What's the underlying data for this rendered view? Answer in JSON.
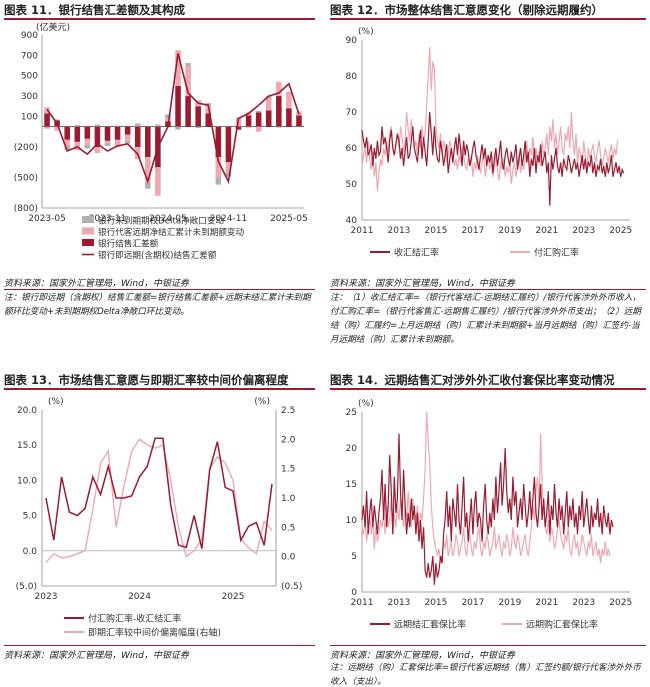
{
  "colors": {
    "dark": "#9b1b30",
    "light": "#f0a8b0",
    "grey": "#b0b0b0",
    "axis": "#888888"
  },
  "panels": [
    {
      "title": "图表 11．银行结售汇差额及其构成",
      "source": "资料来源：国家外汇管理局，Wind，中银证券",
      "note": "注：银行即远期（含期权）结售汇差额=银行结售汇差额+远期未结汇累计未到期额环比变动+未到期期权Delta净敞口环比变动。"
    },
    {
      "title": "图表 12．市场整体结售汇意愿变化（剔除远期履约）",
      "source": "资料来源：国家外汇管理局，Wind，中银证券",
      "note": "注：（1）收汇结汇率=（银行代客结汇-远期结汇履约）/银行代客涉外外币收入，付汇购汇率=（银行代客售汇-远期售汇履约）/银行代客涉外外币支出；（2）远期结（购）汇履约=上月远期结（购）汇累计未到期额+当月远期结（购）汇签约-当月远期结（购）汇累计未到期额。"
    },
    {
      "title": "图表 13．市场结售汇意愿与即期汇率较中间价偏离程度",
      "source": "资料来源：国家外汇管理局，Wind，中银证券"
    },
    {
      "title": "图表 14．远期结售汇对涉外外汇收付套保比率变动情况",
      "source": "资料来源：国家外汇管理局，Wind，中银证券",
      "note": "注：远期结（购）汇套保比率=银行代客远期结（售）汇签约额/银行代客涉外外币收入（支出）。"
    }
  ],
  "chart_data": [
    {
      "type": "bar",
      "unit_label": "(亿美元)",
      "ylim": [
        -800,
        900
      ],
      "y_ticks": [
        900,
        700,
        500,
        300,
        100,
        -200,
        -500,
        -800
      ],
      "y_tick_labels": [
        "900",
        "700",
        "500",
        "300",
        "100",
        "(200)",
        "(500)",
        "(800)"
      ],
      "x_tick_labels": [
        "2023-05",
        "2023-11",
        "2024-05",
        "2024-11",
        "2025-05"
      ],
      "x_tick_index": [
        0,
        6,
        12,
        18,
        24
      ],
      "stacked": true,
      "series": [
        {
          "name": "银行未到期期权Delta净敞口变动",
          "kind": "bar",
          "color_key": "grey",
          "values": [
            -20,
            10,
            -40,
            15,
            -35,
            20,
            -30,
            10,
            -25,
            30,
            -60,
            20,
            40,
            -30,
            25,
            -15,
            20,
            -70,
            -40,
            10,
            -10,
            15,
            20,
            -10,
            10,
            -5
          ]
        },
        {
          "name": "银行代客远期净结汇累计未到期额变动",
          "kind": "bar",
          "color_key": "light",
          "values": [
            60,
            -40,
            -60,
            -80,
            -60,
            -60,
            -20,
            -70,
            -60,
            -120,
            -250,
            -280,
            30,
            350,
            300,
            60,
            80,
            -200,
            -100,
            80,
            30,
            -50,
            120,
            140,
            150,
            40
          ]
        },
        {
          "name": "银行结售汇差额",
          "kind": "bar",
          "color_key": "dark",
          "values": [
            130,
            60,
            -130,
            -150,
            -120,
            -200,
            -140,
            -130,
            -80,
            -200,
            -300,
            -400,
            50,
            400,
            300,
            200,
            130,
            -300,
            -350,
            -30,
            110,
            140,
            160,
            300,
            180,
            110
          ]
        },
        {
          "name": "银行即远期(含期权)结售汇差额",
          "kind": "line",
          "color_key": "dark",
          "values": [
            170,
            30,
            -240,
            -200,
            -270,
            -170,
            -240,
            -190,
            -170,
            -270,
            -540,
            -200,
            0,
            720,
            330,
            230,
            210,
            -340,
            -540,
            80,
            130,
            210,
            300,
            330,
            420,
            120
          ]
        }
      ]
    },
    {
      "type": "line",
      "unit_label": "(%)",
      "ylim": [
        40,
        90
      ],
      "y_ticks": [
        40,
        50,
        60,
        70,
        80,
        90
      ],
      "x_tick_labels": [
        "2011",
        "2013",
        "2015",
        "2017",
        "2019",
        "2021",
        "2023",
        "2025"
      ],
      "x_range": [
        2011,
        2025.5
      ],
      "series": [
        {
          "name": "收汇结汇率",
          "color_key": "dark",
          "start": 2011.0,
          "step": 0.0833,
          "values": [
            65,
            62,
            60,
            63,
            58,
            59,
            61,
            55,
            60,
            57,
            62,
            58,
            59,
            66,
            61,
            63,
            60,
            56,
            62,
            65,
            60,
            58,
            61,
            64,
            62,
            57,
            60,
            55,
            59,
            63,
            57,
            58,
            62,
            66,
            60,
            58,
            56,
            61,
            65,
            57,
            63,
            59,
            55,
            62,
            70,
            64,
            58,
            66,
            60,
            57,
            56,
            62,
            59,
            55,
            58,
            61,
            53,
            57,
            60,
            56,
            60,
            63,
            58,
            64,
            60,
            55,
            62,
            58,
            61,
            59,
            55,
            57,
            60,
            62,
            58,
            56,
            54,
            58,
            61,
            57,
            60,
            55,
            58,
            56,
            59,
            53,
            57,
            60,
            55,
            58,
            62,
            56,
            54,
            58,
            60,
            57,
            55,
            59,
            56,
            58,
            61,
            54,
            57,
            60,
            55,
            58,
            62,
            56,
            59,
            52,
            57,
            55,
            60,
            53,
            58,
            56,
            61,
            55,
            57,
            59,
            53,
            56,
            44,
            58,
            54,
            57,
            60,
            55,
            53,
            56,
            52,
            57,
            55,
            54,
            58,
            56,
            53,
            55,
            57,
            54,
            56,
            52,
            55,
            58,
            54,
            57,
            53,
            56,
            55,
            58,
            53,
            56,
            52,
            55,
            54,
            57,
            53,
            55,
            52,
            56,
            53,
            55,
            58,
            52,
            54,
            56,
            53,
            55,
            52,
            54,
            53
          ]
        },
        {
          "name": "付汇购汇率",
          "color_key": "light",
          "start": 2011.0,
          "step": 0.0833,
          "values": [
            55,
            58,
            60,
            56,
            62,
            57,
            54,
            59,
            52,
            56,
            48,
            53,
            57,
            55,
            60,
            58,
            62,
            59,
            64,
            66,
            60,
            58,
            61,
            64,
            60,
            66,
            63,
            59,
            62,
            70,
            65,
            62,
            68,
            64,
            60,
            62,
            58,
            64,
            60,
            66,
            62,
            64,
            72,
            80,
            88,
            76,
            84,
            82,
            66,
            62,
            60,
            64,
            58,
            62,
            60,
            56,
            58,
            62,
            60,
            58,
            55,
            57,
            54,
            58,
            56,
            60,
            58,
            55,
            54,
            57,
            55,
            58,
            52,
            56,
            54,
            58,
            55,
            53,
            56,
            58,
            52,
            55,
            57,
            54,
            56,
            52,
            55,
            58,
            54,
            51,
            56,
            54,
            57,
            52,
            55,
            53,
            56,
            50,
            54,
            56,
            52,
            55,
            58,
            53,
            56,
            54,
            58,
            62,
            56,
            60,
            58,
            63,
            57,
            60,
            56,
            59,
            55,
            62,
            58,
            60,
            64,
            58,
            66,
            62,
            68,
            60,
            64,
            58,
            62,
            66,
            60,
            58,
            64,
            62,
            66,
            60,
            70,
            62,
            58,
            64,
            56,
            60,
            58,
            55,
            62,
            58,
            54,
            60,
            57,
            59,
            61,
            58,
            56,
            60,
            62,
            58,
            55,
            57,
            60,
            58,
            56,
            59,
            61,
            57,
            60,
            58,
            62
          ]
        }
      ],
      "legend": [
        "收汇结汇率",
        "付汇购汇率"
      ]
    },
    {
      "type": "line",
      "unit_label_left": "(%)",
      "unit_label_right": "(%)",
      "ylim_left": [
        -5,
        20
      ],
      "ylim_right": [
        -0.5,
        2.5
      ],
      "y_ticks_left": [
        20,
        15,
        10,
        5,
        0,
        -5
      ],
      "y_tick_labels_left": [
        "20.0",
        "15.0",
        "10.0",
        "5.0",
        "0.0",
        "(5.0)"
      ],
      "y_ticks_right": [
        2.5,
        2.0,
        1.5,
        1.0,
        0.5,
        0.0,
        -0.5
      ],
      "y_tick_labels_right": [
        "2.5",
        "2.0",
        "1.5",
        "1.0",
        "0.5",
        "0.0",
        "(0.5)"
      ],
      "x_tick_labels": [
        "2023",
        "2024",
        "2025"
      ],
      "x_tick_index": [
        0,
        12,
        24
      ],
      "series": [
        {
          "name": "付汇购汇率-收汇结汇率",
          "axis": "left",
          "color_key": "dark",
          "values": [
            7.5,
            1.5,
            10.5,
            5.5,
            5.0,
            6.0,
            10.5,
            8.0,
            12.0,
            7.5,
            7.5,
            7.8,
            10.5,
            12.0,
            16.0,
            16.0,
            6.5,
            0.8,
            0.5,
            5.0,
            0.3,
            11.5,
            15.5,
            9.0,
            8.5,
            1.5,
            3.5,
            4.0,
            0.8,
            9.5
          ]
        },
        {
          "name": "即期汇率较中间价偏离幅度(右轴)",
          "axis": "right",
          "color_key": "light",
          "values": [
            -0.1,
            0.05,
            -0.02,
            0.0,
            0.05,
            0.1,
            0.8,
            1.6,
            1.8,
            0.5,
            1.2,
            1.8,
            2.0,
            1.9,
            1.85,
            1.9,
            1.3,
            0.5,
            0.0,
            0.1,
            0.3,
            1.5,
            1.7,
            1.6,
            1.3,
            0.3,
            0.15,
            0.05,
            0.6,
            0.45
          ]
        }
      ],
      "legend": [
        "付汇购汇率-收汇结汇率",
        "即期汇率较中间价偏离幅度(右轴)"
      ]
    },
    {
      "type": "line",
      "unit_label": "(%)",
      "ylim": [
        0,
        25
      ],
      "y_ticks": [
        0,
        5,
        10,
        15,
        20,
        25
      ],
      "x_tick_labels": [
        "2011",
        "2013",
        "2015",
        "2017",
        "2019",
        "2021",
        "2023",
        "2025"
      ],
      "x_range": [
        2011,
        2025.5
      ],
      "series": [
        {
          "name": "远期结汇套保比率",
          "color_key": "dark",
          "start": 2011.0,
          "step": 0.0833,
          "values": [
            10,
            12,
            9,
            14,
            8,
            11,
            13,
            9,
            12,
            10,
            8,
            11,
            13,
            17,
            10,
            15,
            9,
            12,
            19,
            14,
            8,
            16,
            11,
            13,
            22,
            14,
            10,
            17,
            12,
            8,
            11,
            9,
            13,
            10,
            12,
            8,
            11,
            7,
            10,
            6,
            9,
            3,
            2,
            4,
            2,
            3,
            5,
            1,
            4,
            2,
            3,
            5,
            4,
            8,
            10,
            14,
            9,
            12,
            7,
            13,
            11,
            9,
            15,
            10,
            8,
            12,
            16,
            9,
            11,
            7,
            10,
            13,
            8,
            12,
            14,
            9,
            11,
            10,
            7,
            12,
            15,
            10,
            8,
            11,
            9,
            13,
            10,
            16,
            11,
            14,
            18,
            12,
            15,
            20,
            14,
            11,
            13,
            10,
            16,
            12,
            14,
            9,
            11,
            13,
            10,
            15,
            12,
            9,
            11,
            14,
            10,
            13,
            16,
            11,
            9,
            12,
            15,
            10,
            13,
            9,
            11,
            14,
            8,
            12,
            10,
            15,
            11,
            9,
            13,
            10,
            12,
            8,
            11,
            14,
            9,
            12,
            10,
            13,
            9,
            11,
            8,
            12,
            10,
            14,
            9,
            11,
            13,
            10,
            8,
            12,
            9,
            11,
            10,
            13,
            9,
            11,
            8,
            12,
            10,
            9,
            11,
            8,
            10,
            9
          ]
        },
        {
          "name": "远期购汇套保比率",
          "color_key": "light",
          "start": 2011.0,
          "step": 0.0833,
          "values": [
            9,
            8,
            10,
            7,
            9,
            11,
            8,
            10,
            6,
            9,
            7,
            8,
            10,
            9,
            11,
            8,
            12,
            9,
            10,
            13,
            8,
            11,
            9,
            12,
            10,
            13,
            11,
            9,
            12,
            10,
            14,
            11,
            9,
            13,
            11,
            10,
            12,
            9,
            11,
            10,
            13,
            17,
            25,
            21,
            18,
            12,
            9,
            7,
            6,
            5,
            6,
            4,
            5,
            7,
            6,
            8,
            5,
            6,
            7,
            5,
            6,
            8,
            7,
            5,
            6,
            7,
            9,
            6,
            5,
            7,
            8,
            6,
            5,
            7,
            6,
            8,
            9,
            6,
            5,
            7,
            6,
            8,
            7,
            5,
            6,
            7,
            9,
            6,
            7,
            8,
            6,
            5,
            7,
            6,
            8,
            7,
            5,
            6,
            9,
            7,
            6,
            8,
            7,
            5,
            6,
            7,
            8,
            6,
            5,
            7,
            9,
            12,
            10,
            14,
            16,
            12,
            22,
            15,
            11,
            9,
            8,
            10,
            7,
            9,
            8,
            6,
            7,
            9,
            10,
            8,
            7,
            6,
            8,
            7,
            9,
            6,
            5,
            7,
            8,
            6,
            7,
            5,
            6,
            8,
            7,
            6,
            5,
            7,
            6,
            8,
            5,
            6,
            7,
            5,
            6,
            4,
            6,
            5,
            7,
            5,
            6,
            5
          ]
        }
      ],
      "legend": [
        "远期结汇套保比率",
        "远期购汇套保比率"
      ]
    }
  ]
}
